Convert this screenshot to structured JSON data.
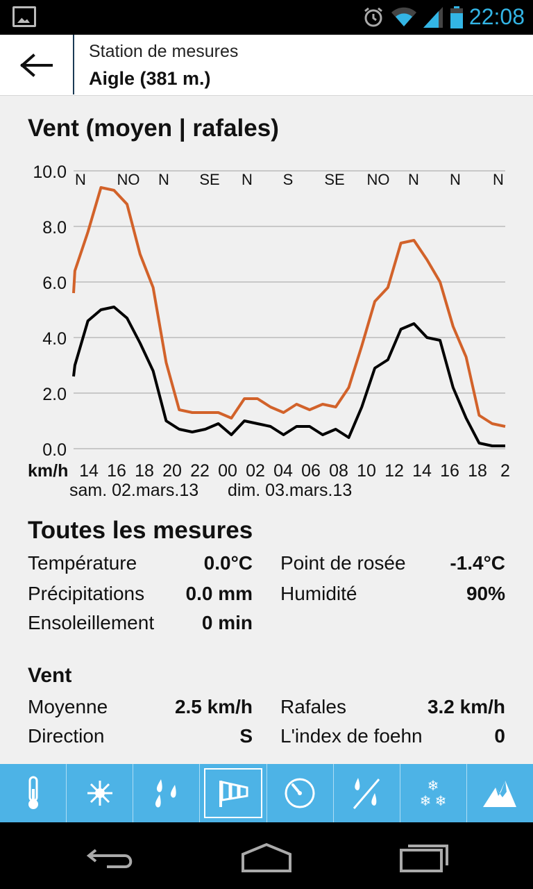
{
  "status_bar": {
    "time": "22:08",
    "icons": [
      "image-icon",
      "alarm-icon",
      "wifi-icon",
      "signal-icon",
      "battery-icon"
    ]
  },
  "app_bar": {
    "subtitle": "Station de mesures",
    "title": "Aigle (381 m.)"
  },
  "wind_chart": {
    "heading": "Vent (moyen | rafales)"
  },
  "chart_data": {
    "type": "line",
    "title": "Vent (moyen | rafales)",
    "ylabel": "km/h",
    "ylim": [
      0,
      10
    ],
    "yticks": [
      "10.0",
      "8.0",
      "6.0",
      "4.0",
      "2.0",
      "0.0"
    ],
    "xticks": [
      "14",
      "16",
      "18",
      "20",
      "22",
      "00",
      "02",
      "04",
      "06",
      "08",
      "10",
      "12",
      "14",
      "16",
      "18",
      "2"
    ],
    "date_labels": [
      "sam. 02.mars.13",
      "dim. 03.mars.13"
    ],
    "directions": [
      "N",
      "NO",
      "N",
      "SE",
      "N",
      "S",
      "SE",
      "NO",
      "N",
      "N",
      "N"
    ],
    "x": [
      12.9,
      13,
      14,
      15,
      16,
      17,
      18,
      19,
      20,
      21,
      22,
      23,
      24,
      25,
      26,
      27,
      28,
      29,
      30,
      31,
      32,
      33,
      34,
      35,
      36,
      37,
      38,
      39,
      40,
      41,
      42,
      43,
      44,
      45,
      46
    ],
    "series": [
      {
        "color": "#d2622a",
        "values": [
          5.6,
          6.4,
          7.8,
          9.4,
          9.3,
          8.8,
          7.0,
          5.8,
          3.1,
          1.4,
          1.3,
          1.3,
          1.3,
          1.1,
          1.8,
          1.8,
          1.5,
          1.3,
          1.6,
          1.4,
          1.6,
          1.5,
          2.2,
          3.7,
          5.3,
          5.8,
          7.4,
          7.5,
          6.8,
          6.0,
          4.4,
          3.3,
          1.2,
          0.9,
          0.8
        ]
      },
      {
        "color": "#000000",
        "values": [
          2.6,
          3.0,
          4.6,
          5.0,
          5.1,
          4.7,
          3.8,
          2.8,
          1.0,
          0.7,
          0.6,
          0.7,
          0.9,
          0.5,
          1.0,
          0.9,
          0.8,
          0.5,
          0.8,
          0.8,
          0.5,
          0.7,
          0.4,
          1.5,
          2.9,
          3.2,
          4.3,
          4.5,
          4.0,
          3.9,
          2.2,
          1.1,
          0.2,
          0.1,
          0.1
        ]
      }
    ]
  },
  "measurements": {
    "heading": "Toutes les mesures",
    "temperature_label": "Température",
    "temperature_value": "0.0°C",
    "dewpoint_label": "Point de rosée",
    "dewpoint_value": "-1.4°C",
    "precip_label": "Précipitations",
    "precip_value": "0.0 mm",
    "humidity_label": "Humidité",
    "humidity_value": "90%",
    "sunshine_label": "Ensoleillement",
    "sunshine_value": "0 min"
  },
  "wind": {
    "heading": "Vent",
    "mean_label": "Moyenne",
    "mean_value": "2.5 km/h",
    "gust_label": "Rafales",
    "gust_value": "3.2 km/h",
    "direction_label": "Direction",
    "direction_value": "S",
    "foehn_label": "L'index de foehn",
    "foehn_value": "0"
  },
  "tabs": [
    {
      "name": "temperature-tab",
      "icon": "thermometer-icon"
    },
    {
      "name": "sunshine-tab",
      "icon": "sun-icon"
    },
    {
      "name": "precipitation-tab",
      "icon": "raindrops-icon"
    },
    {
      "name": "wind-tab",
      "icon": "windsock-icon",
      "active": true
    },
    {
      "name": "pressure-tab",
      "icon": "gauge-icon"
    },
    {
      "name": "humidity-tab",
      "icon": "humidity-icon"
    },
    {
      "name": "snow-tab",
      "icon": "snowflakes-icon"
    },
    {
      "name": "foehn-tab",
      "icon": "mountain-icon"
    }
  ]
}
